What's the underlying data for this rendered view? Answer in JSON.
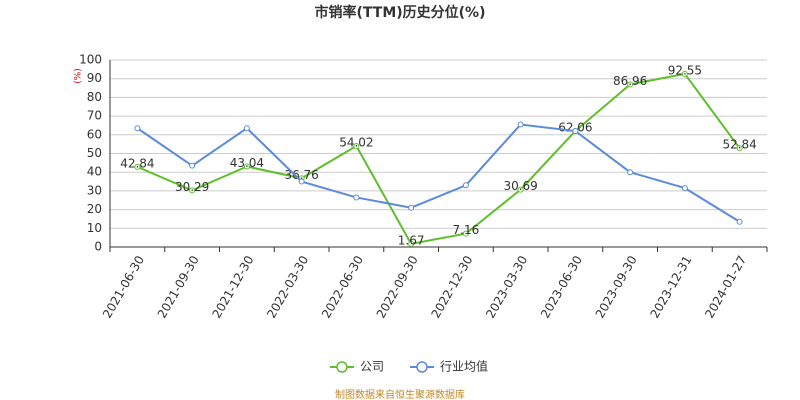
{
  "chart_data": {
    "type": "line",
    "title": "市销率(TTM)历史分位(%)",
    "y_unit": "(%)",
    "source": "制图数据来自恒生聚源数据库",
    "categories": [
      "2021-06-30",
      "2021-09-30",
      "2021-12-30",
      "2022-03-30",
      "2022-06-30",
      "2022-09-30",
      "2022-12-30",
      "2023-03-30",
      "2023-06-30",
      "2023-09-30",
      "2023-12-31",
      "2024-01-27"
    ],
    "series": [
      {
        "name": "公司",
        "color": "#5dbf29",
        "values": [
          42.84,
          30.29,
          43.04,
          36.76,
          54.02,
          1.67,
          7.16,
          30.69,
          62.06,
          86.96,
          92.55,
          52.84
        ],
        "show_labels": true
      },
      {
        "name": "行业均值",
        "color": "#5b8bdb",
        "values": [
          63.5,
          43.5,
          63.5,
          35,
          26.5,
          21,
          33,
          65.5,
          62,
          40,
          31.5,
          13.5
        ],
        "show_labels": false
      }
    ],
    "ylim": [
      0,
      100
    ],
    "yticks": [
      0,
      10,
      20,
      30,
      40,
      50,
      60,
      70,
      80,
      90,
      100
    ],
    "grid": true
  }
}
